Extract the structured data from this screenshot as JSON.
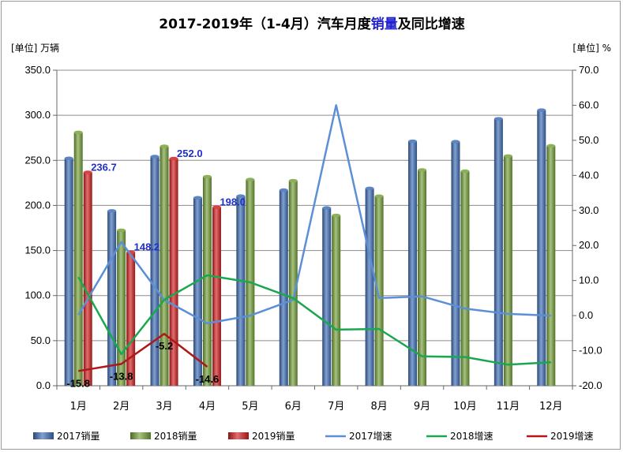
{
  "chart_data": {
    "type": "bar",
    "title_parts": [
      {
        "text": "2017-2019年（1-4月）汽车月度",
        "color": "#000000"
      },
      {
        "text": "销量",
        "color": "#1f1fcf"
      },
      {
        "text": "及同比增速",
        "color": "#000000"
      }
    ],
    "left_unit": "[单位] 万辆",
    "right_unit": "[单位] %",
    "categories": [
      "1月",
      "2月",
      "3月",
      "4月",
      "5月",
      "6月",
      "7月",
      "8月",
      "9月",
      "10月",
      "11月",
      "12月"
    ],
    "y_left": {
      "min": 0,
      "max": 350,
      "step": 50,
      "decimals": 1
    },
    "y_right": {
      "min": -20,
      "max": 70,
      "step": 10,
      "decimals": 1
    },
    "bar_series": [
      {
        "name": "2017销量",
        "color": "#3f6fb8",
        "values": [
          252.3,
          194.0,
          254.2,
          208.5,
          210.4,
          217.0,
          197.2,
          218.9,
          271.2,
          270.7,
          296.1,
          305.8
        ]
      },
      {
        "name": "2018销量",
        "color": "#77a33a",
        "values": [
          281.0,
          172.4,
          265.6,
          231.9,
          228.8,
          227.4,
          188.9,
          210.3,
          239.4,
          238.0,
          254.8,
          266.1
        ]
      },
      {
        "name": "2019销量",
        "color": "#d52020",
        "values": [
          236.7,
          148.2,
          252.0,
          198.0,
          null,
          null,
          null,
          null,
          null,
          null,
          null,
          null
        ]
      }
    ],
    "line_series": [
      {
        "name": "2017增速",
        "color": "#5b8fd6",
        "values": [
          0.2,
          21.0,
          4.5,
          -2.2,
          0.0,
          4.5,
          60.0,
          5.0,
          5.5,
          2.0,
          0.5,
          0.0
        ]
      },
      {
        "name": "2018增速",
        "color": "#1aa84e",
        "values": [
          11.0,
          -11.0,
          4.5,
          11.5,
          9.5,
          5.0,
          -4.0,
          -3.8,
          -11.6,
          -11.8,
          -14.0,
          -13.3
        ]
      },
      {
        "name": "2019增速",
        "color": "#b01818",
        "values": [
          -15.8,
          -13.8,
          -5.2,
          -14.6,
          null,
          null,
          null,
          null,
          null,
          null,
          null,
          null
        ]
      }
    ],
    "bar_labels": [
      {
        "series": 2,
        "index": 0,
        "text": "236.7",
        "color": "#1f2fc8"
      },
      {
        "series": 2,
        "index": 1,
        "text": "148.2",
        "color": "#1f2fc8"
      },
      {
        "series": 2,
        "index": 2,
        "text": "252.0",
        "color": "#1f2fc8"
      },
      {
        "series": 2,
        "index": 3,
        "text": "198.0",
        "color": "#1f2fc8"
      }
    ],
    "line_labels": [
      {
        "series": 2,
        "index": 0,
        "text": "-15.8",
        "color": "#000000"
      },
      {
        "series": 2,
        "index": 1,
        "text": "-13.8",
        "color": "#000000"
      },
      {
        "series": 2,
        "index": 2,
        "text": "-5.2",
        "color": "#000000"
      },
      {
        "series": 2,
        "index": 3,
        "text": "-14.6",
        "color": "#000000"
      }
    ],
    "legend": [
      "2017销量",
      "2018销量",
      "2019销量",
      "2017增速",
      "2018增速",
      "2019增速"
    ],
    "legend_position": "bottom",
    "grid": "horizontal"
  }
}
